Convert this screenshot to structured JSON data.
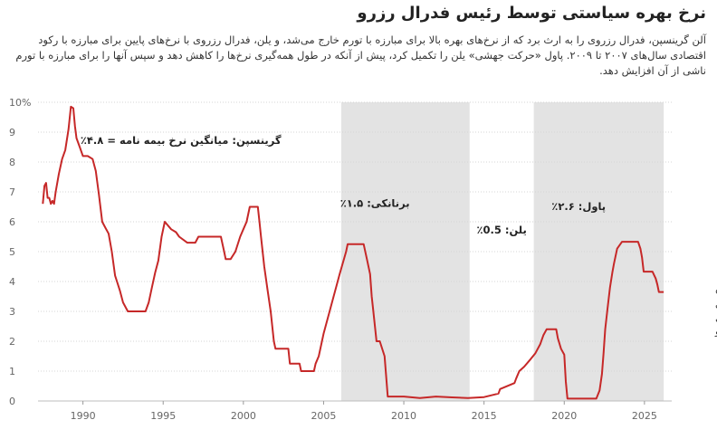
{
  "header": {
    "title": "نرخ بهره سیاستی توسط رئیس فدرال رزرو",
    "description": "آلن گرینسپن، فدرال رزروی را به ارث برد که از نرخ‌های بهره بالا برای مبارزه با تورم خارج می‌شد، و یلن، فدرال رزروی با نرخ‌های پایین برای مبارزه با رکود اقتصادی سال‌های ۲۰۰۷ تا ۲۰۰۹. پاول «حرکت جهشی» یلن را تکمیل کرد، پیش از آنکه در طول همه‌گیری نرخ‌ها را کاهش دهد و سپس آنها را برای مبارزه با تورم ناشی از آن افزایش دهد."
  },
  "chart_data": {
    "type": "line",
    "title": "نرخ بهره سیاستی توسط رئیس فدرال رزرو",
    "xlabel": "",
    "ylabel": "",
    "xlim": [
      1987.2,
      2026.7
    ],
    "ylim": [
      0,
      10
    ],
    "x_ticks": [
      1990,
      1995,
      2000,
      2005,
      2010,
      2015,
      2020,
      2025
    ],
    "x_tick_labels": [
      "1990",
      "1995",
      "2000",
      "2005",
      "2010",
      "2015",
      "2020",
      "2025"
    ],
    "y_ticks": [
      0,
      1,
      2,
      3,
      4,
      5,
      6,
      7,
      8,
      9,
      10
    ],
    "y_tick_labels": [
      "0",
      "1",
      "2",
      "3",
      "4",
      "5",
      "6",
      "7",
      "8",
      "9",
      "10%"
    ],
    "grid": true,
    "line_color": "#c62828",
    "shade_color": "#e3e3e3",
    "shaded_periods": [
      {
        "start": 2006.1,
        "end": 2014.1,
        "label": "برنانکی: ۱.۵٪"
      },
      {
        "start": 2014.1,
        "end": 2018.1,
        "label": "یلن: 0.5٪"
      },
      {
        "start": 2018.1,
        "end": 2026.2,
        "label": "پاول: ۲.۶٪"
      }
    ],
    "annotations": [
      {
        "text": "گرینسپن: میانگین نرخ بیمه نامه = ۴.۸٪",
        "x": 1996.1,
        "y": 8.6
      }
    ],
    "series": [
      {
        "name": "نرخ بهره سیاستی فدرال رزرو",
        "end_label": [
          "نرخ بهره",
          "سیاستی",
          "فدرال",
          "رزرو"
        ],
        "x": [
          1987.5,
          1987.6,
          1987.7,
          1987.8,
          1987.9,
          1988.0,
          1988.1,
          1988.2,
          1988.3,
          1988.5,
          1988.7,
          1988.9,
          1989.1,
          1989.25,
          1989.4,
          1989.5,
          1989.6,
          1989.8,
          1990.0,
          1990.3,
          1990.6,
          1990.8,
          1991.0,
          1991.2,
          1991.4,
          1991.6,
          1991.8,
          1992.0,
          1992.3,
          1992.5,
          1992.8,
          1993.0,
          1993.5,
          1993.9,
          1994.1,
          1994.3,
          1994.5,
          1994.7,
          1994.9,
          1995.1,
          1995.5,
          1995.8,
          1996.0,
          1996.5,
          1997.0,
          1997.2,
          1997.5,
          1998.0,
          1998.6,
          1998.8,
          1998.9,
          1999.2,
          1999.5,
          1999.8,
          2000.0,
          2000.2,
          2000.4,
          2000.9,
          2001.0,
          2001.1,
          2001.3,
          2001.5,
          2001.7,
          2001.9,
          2002.0,
          2002.5,
          2002.8,
          2002.9,
          2003.5,
          2003.6,
          2004.0,
          2004.4,
          2004.5,
          2004.7,
          2005.0,
          2005.5,
          2006.0,
          2006.4,
          2006.5,
          2007.0,
          2007.5,
          2007.7,
          2007.9,
          2008.0,
          2008.1,
          2008.3,
          2008.5,
          2008.8,
          2008.95,
          2009.0,
          2010.0,
          2011.0,
          2012.0,
          2013.0,
          2014.0,
          2015.0,
          2015.9,
          2016.0,
          2016.9,
          2017.0,
          2017.2,
          2017.5,
          2017.9,
          2018.2,
          2018.5,
          2018.7,
          2018.9,
          2019.5,
          2019.6,
          2019.8,
          2020.0,
          2020.1,
          2020.2,
          2021.0,
          2022.0,
          2022.2,
          2022.35,
          2022.45,
          2022.55,
          2022.7,
          2022.85,
          2023.0,
          2023.1,
          2023.3,
          2023.6,
          2024.0,
          2024.6,
          2024.75,
          2024.85,
          2024.95,
          2025.5,
          2025.7,
          2025.8,
          2025.9,
          2026.2
        ],
        "y": [
          6.6,
          7.2,
          7.3,
          6.8,
          6.8,
          6.6,
          6.7,
          6.6,
          7.0,
          7.6,
          8.1,
          8.4,
          9.1,
          9.85,
          9.8,
          9.2,
          8.8,
          8.5,
          8.2,
          8.2,
          8.1,
          7.7,
          6.9,
          6.0,
          5.8,
          5.6,
          5.0,
          4.2,
          3.7,
          3.3,
          3.0,
          3.0,
          3.0,
          3.0,
          3.3,
          3.8,
          4.3,
          4.7,
          5.5,
          6.0,
          5.75,
          5.65,
          5.5,
          5.3,
          5.3,
          5.5,
          5.5,
          5.5,
          5.5,
          5.0,
          4.75,
          4.75,
          5.0,
          5.5,
          5.75,
          6.0,
          6.5,
          6.5,
          6.0,
          5.5,
          4.5,
          3.75,
          3.0,
          2.0,
          1.75,
          1.75,
          1.75,
          1.25,
          1.25,
          1.0,
          1.0,
          1.0,
          1.25,
          1.5,
          2.25,
          3.25,
          4.25,
          5.0,
          5.25,
          5.25,
          5.25,
          4.75,
          4.25,
          3.5,
          3.0,
          2.0,
          2.0,
          1.5,
          0.5,
          0.15,
          0.15,
          0.1,
          0.15,
          0.12,
          0.1,
          0.13,
          0.25,
          0.4,
          0.6,
          0.75,
          1.0,
          1.15,
          1.4,
          1.6,
          1.9,
          2.2,
          2.4,
          2.4,
          2.1,
          1.75,
          1.55,
          0.65,
          0.08,
          0.08,
          0.08,
          0.35,
          0.9,
          1.6,
          2.4,
          3.1,
          3.8,
          4.3,
          4.6,
          5.1,
          5.33,
          5.33,
          5.33,
          5.1,
          4.8,
          4.33,
          4.33,
          4.1,
          3.9,
          3.65,
          3.65
        ]
      }
    ]
  }
}
